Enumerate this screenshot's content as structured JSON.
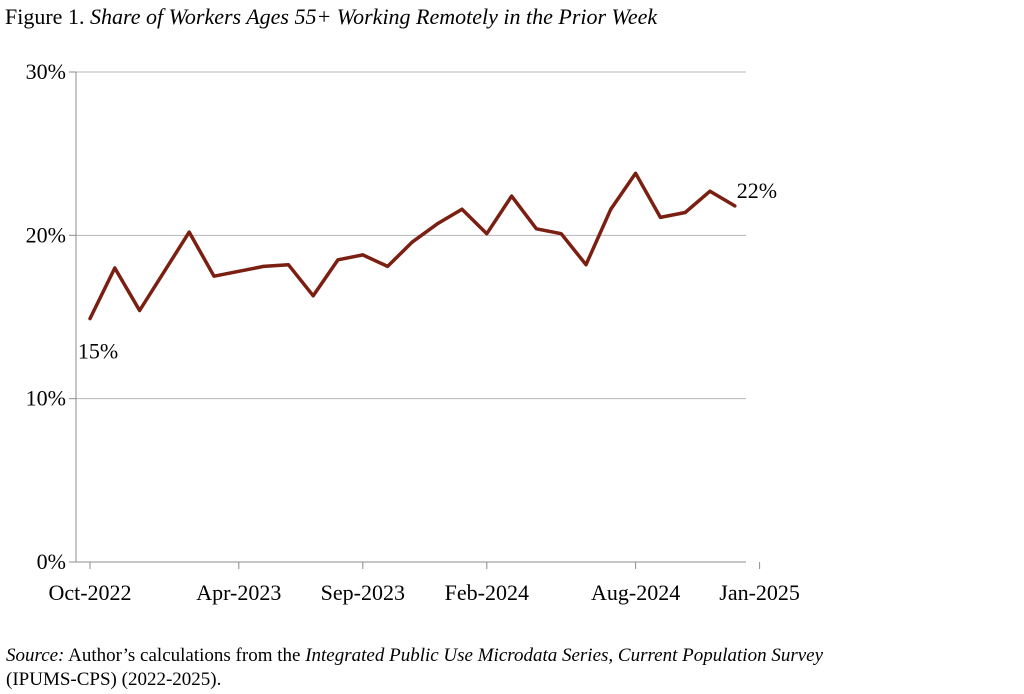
{
  "figure": {
    "prefix": "Figure 1.",
    "title": "Share of Workers Ages 55+ Working Remotely in the Prior Week"
  },
  "source": {
    "label": "Source:",
    "text1": "Author’s calculations from the",
    "dataset": "Integrated Public Use Microdata Series, Current Population Survey",
    "text2": "(IPUMS-CPS) (2022-2025)."
  },
  "chart_data": {
    "type": "line",
    "title": "Share of Workers Ages 55+ Working Remotely in the Prior Week",
    "xlabel": "",
    "ylabel": "",
    "ylim": [
      0,
      30
    ],
    "yticks": [
      "0%",
      "10%",
      "20%",
      "30%"
    ],
    "ytick_values": [
      0,
      10,
      20,
      30
    ],
    "grid": true,
    "legend": "none",
    "line_color": "#7a1f12",
    "x": [
      "Oct-2022",
      "Nov-2022",
      "Dec-2022",
      "Jan-2023",
      "Feb-2023",
      "Mar-2023",
      "Apr-2023",
      "May-2023",
      "Jun-2023",
      "Jul-2023",
      "Aug-2023",
      "Sep-2023",
      "Oct-2023",
      "Nov-2023",
      "Dec-2023",
      "Jan-2024",
      "Feb-2024",
      "Mar-2024",
      "Apr-2024",
      "May-2024",
      "Jun-2024",
      "Jul-2024",
      "Aug-2024",
      "Sep-2024",
      "Oct-2024",
      "Nov-2024",
      "Dec-2024",
      "Jan-2025",
      "Feb-2025"
    ],
    "xtick_labels": [
      "Oct-2022",
      "Apr-2023",
      "Sep-2023",
      "Feb-2024",
      "Aug-2024",
      "Jan-2025"
    ],
    "series": [
      {
        "values": [
          14.9,
          18.0,
          15.4,
          17.8,
          20.2,
          17.5,
          17.8,
          18.1,
          18.2,
          16.3,
          18.5,
          18.8,
          18.1,
          19.6,
          20.7,
          21.6,
          20.1,
          22.4,
          20.4,
          20.1,
          18.2,
          21.6,
          23.8,
          21.1,
          21.4,
          22.7,
          21.8,
          null,
          null
        ],
        "annotations": [
          {
            "index": 0,
            "text": "15%"
          },
          {
            "index": 26,
            "text": "22%"
          }
        ]
      }
    ]
  }
}
